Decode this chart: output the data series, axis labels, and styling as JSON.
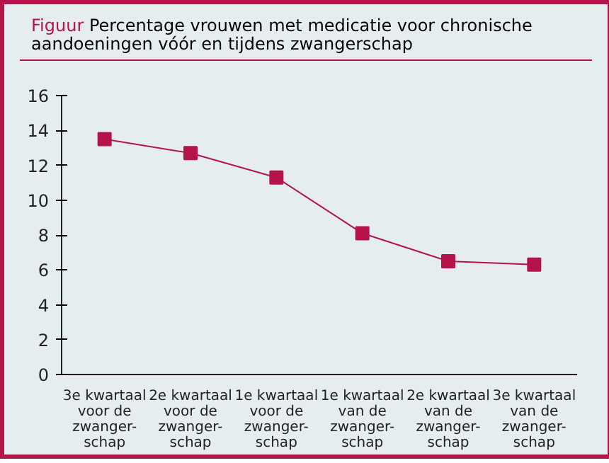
{
  "chart_data": {
    "type": "line",
    "title": "Figuur Percentage vrouwen met medicatie voor chronische aandoeningen vóór en tijdens zwangerschap",
    "categories": [
      "3e kwartaal\nvoor de\nzwanger-\nschap",
      "2e kwartaal\nvoor de\nzwanger-\nschap",
      "1e kwartaal\nvoor de\nzwanger-\nschap",
      "1e kwartaal\nvan de\nzwanger-\nschap",
      "2e kwartaal\nvan de\nzwanger-\nschap",
      "3e kwartaal\nvan de\nzwanger-\nschap"
    ],
    "series": [
      {
        "color": "#b5144b",
        "values": [
          13.5,
          12.7,
          11.3,
          8.1,
          6.5,
          6.3
        ]
      }
    ],
    "ylim": [
      0,
      16
    ],
    "yticks": [
      0,
      2,
      4,
      6,
      8,
      10,
      12,
      14,
      16
    ],
    "grid": false,
    "marker": "square",
    "line_style": "solid"
  }
}
